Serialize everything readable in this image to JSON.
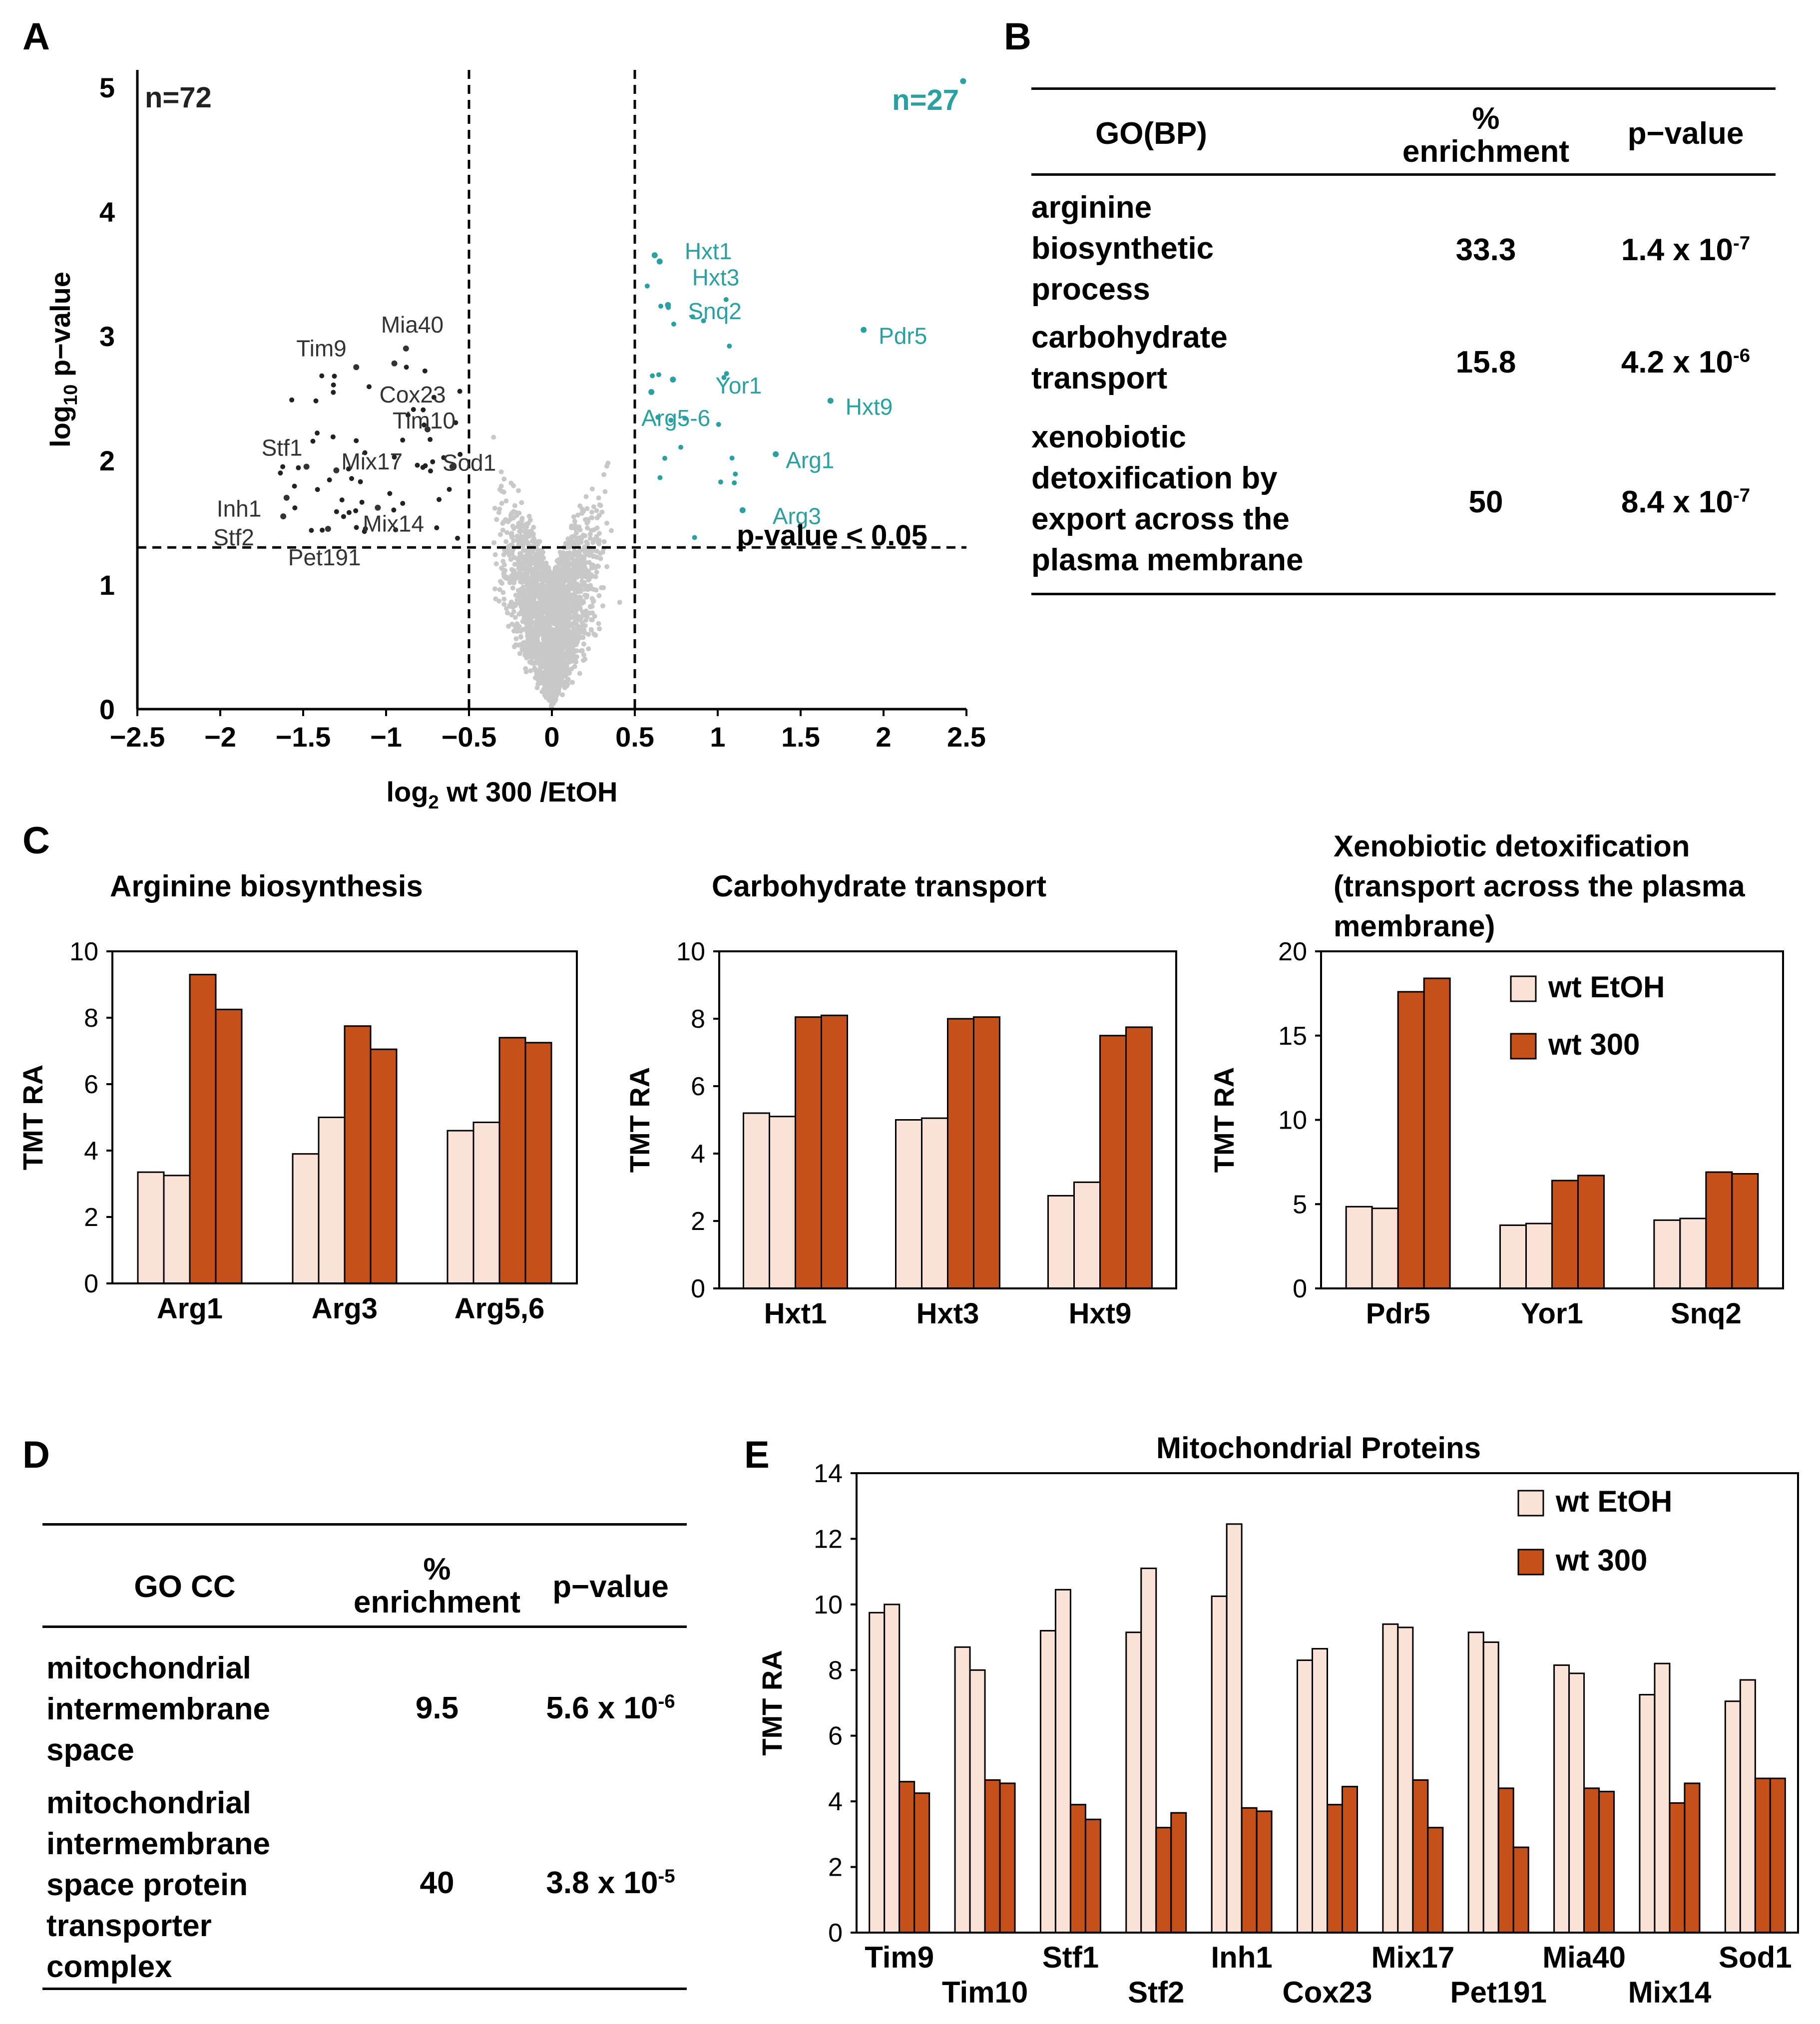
{
  "panels": {
    "A": "A",
    "B": "B",
    "C": "C",
    "D": "D",
    "E": "E"
  },
  "colors": {
    "ethanol": "#fbe2d6",
    "treated": "#c5501a",
    "teal": "#2aa0a2",
    "gray": "#c8c8c8",
    "black": "#222222"
  },
  "volcano": {
    "xlabel_prefix": "log",
    "xlabel_sub": "2",
    "xlabel_suffix": " wt 300 /EtOH",
    "ylabel_prefix": "log",
    "ylabel_sub": "10",
    "ylabel_suffix": " p−value",
    "xticks": [
      "−2.5",
      "−2",
      "−1.5",
      "−1",
      "−0.5",
      "0",
      "0.5",
      "1",
      "1.5",
      "2",
      "2.5"
    ],
    "yticks": [
      "0",
      "1",
      "2",
      "3",
      "4",
      "5"
    ],
    "n_down": "n=72",
    "n_up": "n=27",
    "threshold_label": "p-value < 0.05"
  },
  "table_b": {
    "header": {
      "term": "GO(BP)",
      "enrich_line1": "%",
      "enrich_line2": "enrichment",
      "pval": "p−value"
    },
    "rows": [
      {
        "term_lines": [
          "arginine",
          "biosynthetic",
          "process"
        ],
        "enrichment": "33.3",
        "p_base": "1.4 x 10",
        "p_exp": "-7"
      },
      {
        "term_lines": [
          "carbohydrate",
          "transport"
        ],
        "enrichment": "15.8",
        "p_base": "4.2 x 10",
        "p_exp": "-6"
      },
      {
        "term_lines": [
          "xenobiotic",
          "detoxification by",
          "export across the",
          "plasma membrane"
        ],
        "enrichment": "50",
        "p_base": "8.4 x 10",
        "p_exp": "-7"
      }
    ]
  },
  "table_d": {
    "header": {
      "term": "GO CC",
      "enrich_line1": "%",
      "enrich_line2": "enrichment",
      "pval": "p−value"
    },
    "rows": [
      {
        "term_lines": [
          "mitochondrial",
          "intermembrane",
          "space"
        ],
        "enrichment": "9.5",
        "p_base": "5.6 x 10",
        "p_exp": "-6"
      },
      {
        "term_lines": [
          "mitochondrial",
          "intermembrane",
          "space protein",
          "transporter",
          "complex"
        ],
        "enrichment": "40",
        "p_base": "3.8 x 10",
        "p_exp": "-5"
      }
    ]
  },
  "chart_data": [
    {
      "type": "scatter",
      "title": "",
      "xlabel": "log2 wt 300 /EtOH",
      "ylabel": "log10 p-value",
      "xlim": [
        -2.5,
        2.5
      ],
      "ylim": [
        0,
        5
      ],
      "thresholds": {
        "x": [
          -0.5,
          0.5
        ],
        "y": 1.3
      },
      "labeled_points": [
        {
          "label": "Hxt1",
          "x": 0.62,
          "y": 3.65,
          "group": "up"
        },
        {
          "label": "Hxt3",
          "x": 0.65,
          "y": 3.6,
          "group": "up"
        },
        {
          "label": "Snq2",
          "x": 0.7,
          "y": 3.25,
          "group": "up"
        },
        {
          "label": "Pdr5",
          "x": 1.88,
          "y": 3.05,
          "group": "up"
        },
        {
          "label": "Yor1",
          "x": 0.73,
          "y": 2.65,
          "group": "up"
        },
        {
          "label": "Hxt9",
          "x": 1.68,
          "y": 2.48,
          "group": "up"
        },
        {
          "label": "Arg5-6",
          "x": 0.6,
          "y": 2.55,
          "group": "up"
        },
        {
          "label": "Arg1",
          "x": 1.35,
          "y": 2.05,
          "group": "up"
        },
        {
          "label": "Arg3",
          "x": 1.15,
          "y": 1.6,
          "group": "up"
        },
        {
          "label": "Tim9",
          "x": -1.18,
          "y": 2.75,
          "group": "down"
        },
        {
          "label": "Mia40",
          "x": -0.88,
          "y": 2.9,
          "group": "down"
        },
        {
          "label": "Cox23",
          "x": -0.95,
          "y": 2.78,
          "group": "down"
        },
        {
          "label": "Tim10",
          "x": -0.75,
          "y": 2.25,
          "group": "down"
        },
        {
          "label": "Stf1",
          "x": -1.48,
          "y": 1.95,
          "group": "down"
        },
        {
          "label": "Inh1",
          "x": -1.6,
          "y": 1.7,
          "group": "down"
        },
        {
          "label": "Mix17",
          "x": -1.3,
          "y": 1.92,
          "group": "down"
        },
        {
          "label": "Sod1",
          "x": -0.6,
          "y": 1.95,
          "group": "down"
        },
        {
          "label": "Mix14",
          "x": -1.05,
          "y": 1.62,
          "group": "down"
        },
        {
          "label": "Stf2",
          "x": -1.62,
          "y": 1.55,
          "group": "down"
        },
        {
          "label": "Pet191",
          "x": -1.35,
          "y": 1.45,
          "group": "down"
        }
      ],
      "counts": {
        "down": 72,
        "up": 27
      }
    },
    {
      "type": "bar",
      "title": "Arginine biosynthesis",
      "ylabel": "TMT RA",
      "ylim": [
        0,
        10
      ],
      "yticks": [
        "0",
        "2",
        "4",
        "6",
        "8",
        "10"
      ],
      "categories": [
        "Arg1",
        "Arg3",
        "Arg5,6"
      ],
      "series": [
        {
          "name": "wt EtOH rep1",
          "condition": "wt EtOH",
          "values": [
            3.35,
            3.9,
            4.6
          ]
        },
        {
          "name": "wt EtOH rep2",
          "condition": "wt EtOH",
          "values": [
            3.25,
            5.0,
            4.85
          ]
        },
        {
          "name": "wt 300 rep1",
          "condition": "wt 300",
          "values": [
            9.3,
            7.75,
            7.4
          ]
        },
        {
          "name": "wt 300 rep2",
          "condition": "wt 300",
          "values": [
            8.25,
            7.05,
            7.25
          ]
        }
      ]
    },
    {
      "type": "bar",
      "title": "Carbohydrate transport",
      "ylabel": "TMT RA",
      "ylim": [
        0,
        10
      ],
      "yticks": [
        "0",
        "2",
        "4",
        "6",
        "8",
        "10"
      ],
      "categories": [
        "Hxt1",
        "Hxt3",
        "Hxt9"
      ],
      "series": [
        {
          "name": "wt EtOH rep1",
          "condition": "wt EtOH",
          "values": [
            5.2,
            5.0,
            2.75
          ]
        },
        {
          "name": "wt EtOH rep2",
          "condition": "wt EtOH",
          "values": [
            5.1,
            5.05,
            3.15
          ]
        },
        {
          "name": "wt 300 rep1",
          "condition": "wt 300",
          "values": [
            8.05,
            8.0,
            7.5
          ]
        },
        {
          "name": "wt 300 rep2",
          "condition": "wt 300",
          "values": [
            8.1,
            8.05,
            7.75
          ]
        }
      ]
    },
    {
      "type": "bar",
      "title_lines": [
        "Xenobiotic detoxification",
        "(transport across the plasma",
        "membrane)"
      ],
      "ylabel": "TMT RA",
      "ylim": [
        0,
        20
      ],
      "yticks": [
        "0",
        "5",
        "10",
        "15",
        "20"
      ],
      "categories": [
        "Pdr5",
        "Yor1",
        "Snq2"
      ],
      "legend": [
        "wt EtOH",
        "wt 300"
      ],
      "series": [
        {
          "name": "wt EtOH rep1",
          "condition": "wt EtOH",
          "values": [
            4.85,
            3.75,
            4.05
          ]
        },
        {
          "name": "wt EtOH rep2",
          "condition": "wt EtOH",
          "values": [
            4.75,
            3.85,
            4.15
          ]
        },
        {
          "name": "wt 300 rep1",
          "condition": "wt 300",
          "values": [
            17.6,
            6.4,
            6.9
          ]
        },
        {
          "name": "wt 300 rep2",
          "condition": "wt 300",
          "values": [
            18.4,
            6.7,
            6.8
          ]
        }
      ]
    },
    {
      "type": "bar",
      "title": "Mitochondrial Proteins",
      "ylabel": "TMT RA",
      "ylim": [
        0,
        14
      ],
      "yticks": [
        "0",
        "2",
        "4",
        "6",
        "8",
        "10",
        "12",
        "14"
      ],
      "categories": [
        "Tim9",
        "Tim10",
        "Stf1",
        "Stf2",
        "Inh1",
        "Cox23",
        "Mix17",
        "Pet191",
        "Mia40",
        "Mix14",
        "Sod1"
      ],
      "legend": [
        "wt EtOH",
        "wt 300"
      ],
      "series": [
        {
          "name": "wt EtOH rep1",
          "condition": "wt EtOH",
          "values": [
            9.75,
            8.7,
            9.2,
            9.15,
            10.25,
            8.3,
            9.4,
            9.15,
            8.15,
            7.25,
            7.05
          ]
        },
        {
          "name": "wt EtOH rep2",
          "condition": "wt EtOH",
          "values": [
            10.0,
            8.0,
            10.45,
            11.1,
            12.45,
            8.65,
            9.3,
            8.85,
            7.9,
            8.2,
            7.7
          ]
        },
        {
          "name": "wt 300 rep1",
          "condition": "wt 300",
          "values": [
            4.6,
            4.65,
            3.9,
            3.2,
            3.8,
            3.9,
            4.65,
            4.4,
            4.4,
            3.95,
            4.7
          ]
        },
        {
          "name": "wt 300 rep2",
          "condition": "wt 300",
          "values": [
            4.25,
            4.55,
            3.45,
            3.65,
            3.7,
            4.45,
            3.2,
            2.6,
            4.3,
            4.55,
            4.7
          ]
        }
      ]
    }
  ]
}
